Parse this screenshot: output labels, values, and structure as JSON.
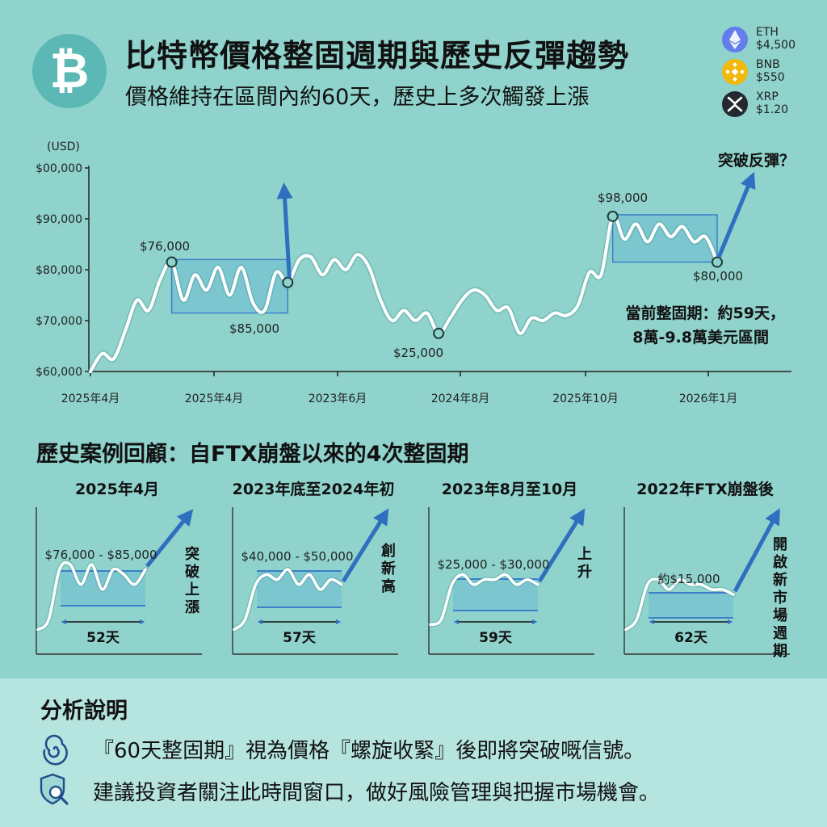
{
  "header": {
    "title": "比特幣價格整固週期與歷史反彈趨勢",
    "subtitle": "價格維持在區間內約60天，歷史上多次觸發上漲",
    "logo_icon": "bitcoin-icon",
    "coins": [
      {
        "symbol": "ETH",
        "price": "$4,500",
        "icon": "eth-icon",
        "color": "#627eea"
      },
      {
        "symbol": "BNB",
        "price": "$550",
        "icon": "bnb-icon",
        "color": "#f0b90b"
      },
      {
        "symbol": "XRP",
        "price": "$1.20",
        "icon": "xrp-icon",
        "color": "#23292f"
      }
    ]
  },
  "chart_data": [
    {
      "type": "line",
      "ylabel": "(USD)",
      "y_ticks": [
        "$00,000",
        "$90,000",
        "$80,000",
        "$70,000",
        "$60,000"
      ],
      "x_ticks": [
        "2025年4月",
        "2025年4月",
        "2023年6月",
        "2024年8月",
        "2025年10月",
        "2026年1月"
      ],
      "ylim": [
        60000,
        100000
      ],
      "values": [
        60000,
        63500,
        62500,
        68000,
        74000,
        72000,
        78000,
        81500,
        74000,
        79000,
        76000,
        80500,
        75000,
        80500,
        73500,
        72000,
        79500,
        77500,
        82000,
        82500,
        79000,
        82000,
        80000,
        83000,
        80500,
        74000,
        70000,
        72000,
        70000,
        71500,
        67500,
        70500,
        74000,
        76000,
        75000,
        72000,
        72500,
        67500,
        70500,
        70000,
        71500,
        71000,
        73000,
        79500,
        79000,
        90500,
        86000,
        89000,
        85500,
        89000,
        86500,
        88500,
        85500,
        86500,
        81500
      ],
      "annotations": {
        "a1": "$76,000",
        "a2": "$85,000",
        "a3": "$25,000",
        "a4": "$98,000",
        "a5": "$80,000",
        "breakout": "突破反彈？",
        "current_line1": "當前整固期：約59天，",
        "current_line2": "8萬-9.8萬美元區間"
      },
      "grid": false
    },
    {
      "type": "line",
      "title": "2025年4月",
      "range_label": "$76,000 - $85,000",
      "days": "52天",
      "outcome": "突破上漲",
      "values": [
        2,
        4,
        14,
        15,
        11,
        15,
        10,
        14,
        13,
        11,
        14
      ]
    },
    {
      "type": "line",
      "title": "2023年底至2024年初",
      "range_label": "$40,000 - $50,000",
      "days": "57天",
      "outcome": "創新高",
      "values": [
        2,
        4,
        11,
        13,
        12,
        14,
        11,
        13,
        10,
        12,
        11
      ]
    },
    {
      "type": "line",
      "title": "2023年8月至10月",
      "range_label": "$25,000 - $30,000",
      "days": "59天",
      "outcome": "上升",
      "values": [
        3,
        4,
        11,
        13,
        11,
        12,
        12,
        13,
        11,
        12,
        11
      ]
    },
    {
      "type": "line",
      "title": "2022年FTX崩盤後",
      "range_label": "約$15,000",
      "days": "62天",
      "outcome": "開啟新市場週期",
      "values": [
        2,
        4,
        11,
        12,
        10,
        12,
        11,
        11,
        10,
        10,
        9
      ]
    }
  ],
  "history": {
    "title": "歷史案例回顧：自FTX崩盤以來的4次整固期"
  },
  "analysis": {
    "title": "分析說明",
    "notes": [
      {
        "icon": "spiral-icon",
        "text": "『60天整固期』視為價格『螺旋收緊』後即將突破嘅信號。"
      },
      {
        "icon": "shield-search-icon",
        "text": "建議投資者關注此時間窗口，做好風險管理與把握市場機會。"
      }
    ]
  },
  "colors": {
    "background": "#8fd3cc",
    "bitcoin_circle": "#5cb8b4",
    "arrow": "#2f6fc0",
    "band_fill": "#6fbfd0",
    "band_border": "#3b7fc8"
  }
}
